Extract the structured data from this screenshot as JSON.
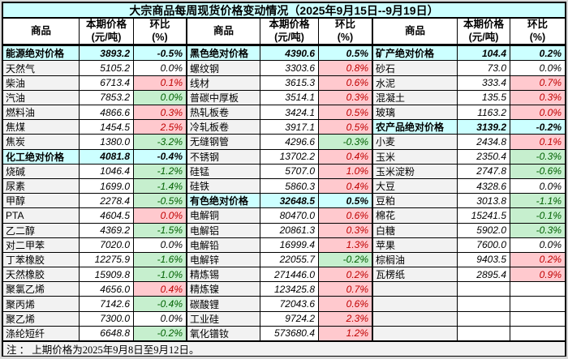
{
  "title": "大宗商品每周现货价格变动情况（2025年9月15日--9月19日）",
  "note": "注 ： 上期价格为2025年9月8日至9月12日。",
  "header": {
    "commodity": "商品",
    "price_line1": "本期价格",
    "price_line2": "(元/吨)",
    "change_line1": "环比",
    "change_line2": "(%)"
  },
  "colors": {
    "section_bg": "#ccffff",
    "increase_bg": "#ffc9ce",
    "increase_text": "#c00000",
    "decrease_bg": "#c6efce",
    "decrease_text": "#006100",
    "name_bg": "#f2f2f2",
    "border": "#000000"
  },
  "groups": [
    {
      "rows": [
        {
          "name": "能源绝对价格",
          "price": "3893.2",
          "change": "-0.5%",
          "style": "section"
        },
        {
          "name": "天然气",
          "price": "5105.2",
          "change": "0.0%",
          "style": "flat"
        },
        {
          "name": "柴油",
          "price": "6713.4",
          "change": "0.1%",
          "style": "up"
        },
        {
          "name": "汽油",
          "price": "7853.2",
          "change": "0.0%",
          "style": "down"
        },
        {
          "name": "燃料油",
          "price": "4866.6",
          "change": "0.3%",
          "style": "up"
        },
        {
          "name": "焦煤",
          "price": "1454.5",
          "change": "2.5%",
          "style": "up"
        },
        {
          "name": "焦炭",
          "price": "1380.0",
          "change": "-3.2%",
          "style": "down"
        },
        {
          "name": "化工绝对价格",
          "price": "4081.8",
          "change": "-0.4%",
          "style": "section"
        },
        {
          "name": "烧碱",
          "price": "1046.4",
          "change": "-1.2%",
          "style": "down"
        },
        {
          "name": "尿素",
          "price": "1699.0",
          "change": "-1.4%",
          "style": "down"
        },
        {
          "name": "甲醇",
          "price": "2278.4",
          "change": "-0.5%",
          "style": "down"
        },
        {
          "name": "PTA",
          "price": "4604.5",
          "change": "0.0%",
          "style": "up"
        },
        {
          "name": "乙二醇",
          "price": "4369.2",
          "change": "-1.5%",
          "style": "down"
        },
        {
          "name": "对二甲苯",
          "price": "7020.0",
          "change": "0.0%",
          "style": "flat"
        },
        {
          "name": "丁苯橡胶",
          "price": "12275.9",
          "change": "-1.6%",
          "style": "down"
        },
        {
          "name": "天然橡胶",
          "price": "15909.8",
          "change": "-1.0%",
          "style": "down"
        },
        {
          "name": "聚氯乙烯",
          "price": "4656.0",
          "change": "0.4%",
          "style": "up"
        },
        {
          "name": "聚丙烯",
          "price": "7142.6",
          "change": "-0.4%",
          "style": "down"
        },
        {
          "name": "聚乙烯",
          "price": "7300.0",
          "change": "0.0%",
          "style": "flat"
        },
        {
          "name": "涤纶短纤",
          "price": "6648.8",
          "change": "-0.2%",
          "style": "down"
        }
      ]
    },
    {
      "rows": [
        {
          "name": "黑色绝对价格",
          "price": "4390.6",
          "change": "0.5%",
          "style": "section"
        },
        {
          "name": "螺纹钢",
          "price": "3303.6",
          "change": "0.8%",
          "style": "up"
        },
        {
          "name": "线材",
          "price": "3615.3",
          "change": "0.6%",
          "style": "up"
        },
        {
          "name": "普碳中厚板",
          "price": "3514.1",
          "change": "0.3%",
          "style": "up"
        },
        {
          "name": "热轧板卷",
          "price": "3424.1",
          "change": "0.5%",
          "style": "up"
        },
        {
          "name": "冷轧板卷",
          "price": "3917.1",
          "change": "0.5%",
          "style": "up"
        },
        {
          "name": "无缝钢管",
          "price": "4296.6",
          "change": "-0.3%",
          "style": "down"
        },
        {
          "name": "不锈钢",
          "price": "13702.2",
          "change": "0.4%",
          "style": "up"
        },
        {
          "name": "硅锰",
          "price": "5707.0",
          "change": "1.0%",
          "style": "up"
        },
        {
          "name": "硅铁",
          "price": "5860.3",
          "change": "0.4%",
          "style": "up"
        },
        {
          "name": "有色绝对价格",
          "price": "32648.5",
          "change": "0.5%",
          "style": "section"
        },
        {
          "name": "电解铜",
          "price": "80470.0",
          "change": "0.6%",
          "style": "up"
        },
        {
          "name": "电解铝",
          "price": "20861.3",
          "change": "0.3%",
          "style": "up"
        },
        {
          "name": "电解铅",
          "price": "16999.4",
          "change": "1.3%",
          "style": "up"
        },
        {
          "name": "电解锌",
          "price": "22055.7",
          "change": "-0.2%",
          "style": "down"
        },
        {
          "name": "精炼锡",
          "price": "271446.0",
          "change": "0.2%",
          "style": "up"
        },
        {
          "name": "精炼镍",
          "price": "123425.8",
          "change": "0.7%",
          "style": "up"
        },
        {
          "name": "碳酸锂",
          "price": "72043.6",
          "change": "0.6%",
          "style": "up"
        },
        {
          "name": "工业硅",
          "price": "9724.2",
          "change": "2.3%",
          "style": "up"
        },
        {
          "name": "氧化镨钕",
          "price": "573680.4",
          "change": "1.2%",
          "style": "up"
        }
      ]
    },
    {
      "rows": [
        {
          "name": "矿产绝对价格",
          "price": "104.4",
          "change": "0.2%",
          "style": "section"
        },
        {
          "name": "砂石",
          "price": "73.0",
          "change": "0.0%",
          "style": "flat"
        },
        {
          "name": "水泥",
          "price": "333.4",
          "change": "0.7%",
          "style": "up"
        },
        {
          "name": "混凝土",
          "price": "135.5",
          "change": "0.3%",
          "style": "up"
        },
        {
          "name": "玻璃",
          "price": "1163.2",
          "change": "0.0%",
          "style": "up"
        },
        {
          "name": "农产品绝对价格",
          "price": "3139.2",
          "change": "-0.2%",
          "style": "section"
        },
        {
          "name": "小麦",
          "price": "2434.8",
          "change": "0.1%",
          "style": "up"
        },
        {
          "name": "玉米",
          "price": "2350.4",
          "change": "-0.3%",
          "style": "down"
        },
        {
          "name": "玉米淀粉",
          "price": "2747.8",
          "change": "-0.6%",
          "style": "down"
        },
        {
          "name": "大豆",
          "price": "4328.6",
          "change": "0.0%",
          "style": "flat"
        },
        {
          "name": "豆粕",
          "price": "3013.8",
          "change": "-1.1%",
          "style": "down"
        },
        {
          "name": "棉花",
          "price": "15241.5",
          "change": "-0.1%",
          "style": "down"
        },
        {
          "name": "白糖",
          "price": "5902.0",
          "change": "-0.3%",
          "style": "down"
        },
        {
          "name": "苹果",
          "price": "7600.0",
          "change": "0.0%",
          "style": "flat"
        },
        {
          "name": "棕榈油",
          "price": "9403.5",
          "change": "0.2%",
          "style": "up"
        },
        {
          "name": "瓦楞纸",
          "price": "2895.4",
          "change": "0.9%",
          "style": "up"
        },
        {
          "style": "empty"
        },
        {
          "style": "empty"
        },
        {
          "style": "empty"
        },
        {
          "style": "empty"
        }
      ]
    }
  ]
}
